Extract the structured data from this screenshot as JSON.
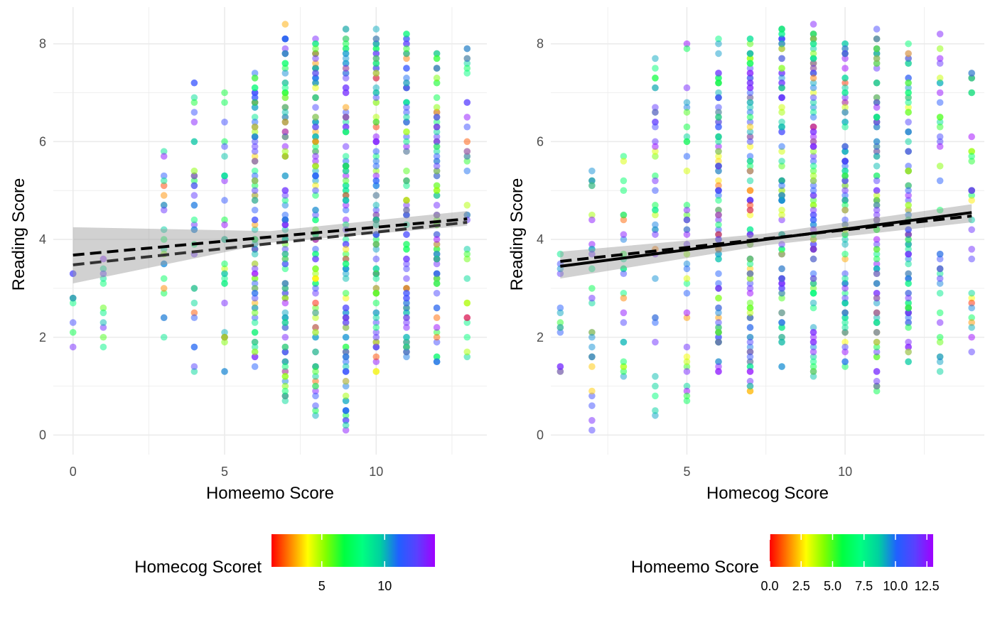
{
  "palette": {
    "grid": "#ebebeb",
    "tick_text": "#4d4d4d",
    "ribbon": "#999999",
    "line": "#000000",
    "gradient": [
      "#ff0000",
      "#ff8000",
      "#ffff00",
      "#80ff00",
      "#00ff40",
      "#00ff80",
      "#00d0a0",
      "#2060ff",
      "#5a40ff",
      "#a000ff"
    ]
  },
  "chart_data": [
    {
      "type": "scatter",
      "xlabel": "Homeemo Score",
      "ylabel": "Reading Score",
      "xlim": [
        -0.65,
        13.65
      ],
      "ylim": [
        -0.4,
        8.75
      ],
      "x_ticks": [
        0,
        5,
        10
      ],
      "x_tick_labels": [
        "0",
        "5",
        "10"
      ],
      "y_ticks": [
        0,
        2,
        4,
        6,
        8
      ],
      "y_tick_labels": [
        "0",
        "2",
        "4",
        "6",
        "8"
      ],
      "color_variable": "Homecog Score",
      "color_range": [
        1,
        14
      ],
      "grid": true,
      "legend": {
        "title": "Homecog Scoret",
        "position": "bottom",
        "range": [
          1,
          14
        ],
        "ticks": [
          5,
          10
        ],
        "tick_labels": [
          "5",
          "10"
        ]
      },
      "points_note": "approximately 900 jittered-free points at integer x values",
      "x_values": [
        0,
        1,
        3,
        4,
        5,
        6,
        7,
        8,
        9,
        10,
        11,
        12,
        13
      ],
      "y_range_by_x": {
        "0": [
          1.8,
          3.3
        ],
        "1": [
          1.8,
          3.6
        ],
        "3": [
          2.0,
          5.8
        ],
        "4": [
          1.3,
          7.2
        ],
        "5": [
          1.3,
          7.0
        ],
        "6": [
          1.4,
          7.4
        ],
        "7": [
          0.7,
          8.4
        ],
        "8": [
          0.4,
          8.1
        ],
        "9": [
          0.1,
          8.3
        ],
        "10": [
          1.3,
          8.3
        ],
        "11": [
          1.6,
          8.2
        ],
        "12": [
          1.5,
          7.8
        ],
        "13": [
          1.6,
          7.9
        ]
      },
      "fits": [
        {
          "x": [
            0,
            13
          ],
          "y": [
            3.68,
            4.42
          ],
          "style": "dashed",
          "ribbon": [
            [
              3.1,
              4.25
            ],
            [
              4.28,
              4.58
            ]
          ]
        },
        {
          "x": [
            0,
            13
          ],
          "y": [
            3.48,
            4.35
          ],
          "style": "dashed-secondary"
        }
      ]
    },
    {
      "type": "scatter",
      "xlabel": "Homecog Score",
      "ylabel": "Reading Score",
      "xlim": [
        0.7,
        14.4
      ],
      "ylim": [
        -0.4,
        8.75
      ],
      "x_ticks": [
        5,
        10
      ],
      "x_tick_labels": [
        "5",
        "10"
      ],
      "y_ticks": [
        0,
        2,
        4,
        6,
        8
      ],
      "y_tick_labels": [
        "0",
        "2",
        "4",
        "6",
        "8"
      ],
      "color_variable": "Homeemo Score",
      "color_range": [
        0,
        13
      ],
      "grid": true,
      "legend": {
        "title": "Homeemo Score",
        "position": "bottom",
        "range": [
          0,
          13
        ],
        "ticks": [
          0,
          2.5,
          5,
          7.5,
          10,
          12.5
        ],
        "tick_labels": [
          "0.0",
          "2.5",
          "5.0",
          "7.5",
          "10.0",
          "12.5"
        ]
      },
      "x_values": [
        1,
        2,
        3,
        4,
        5,
        6,
        7,
        8,
        9,
        10,
        11,
        12,
        13,
        14
      ],
      "y_range_by_x": {
        "1": [
          1.3,
          3.7
        ],
        "2": [
          0.1,
          5.4
        ],
        "3": [
          1.2,
          5.7
        ],
        "4": [
          0.4,
          7.7
        ],
        "5": [
          0.7,
          8.0
        ],
        "6": [
          1.3,
          8.1
        ],
        "7": [
          0.9,
          8.1
        ],
        "8": [
          1.4,
          8.3
        ],
        "9": [
          1.2,
          8.4
        ],
        "10": [
          1.4,
          8.0
        ],
        "11": [
          0.9,
          8.3
        ],
        "12": [
          1.5,
          8.0
        ],
        "13": [
          1.3,
          8.2
        ],
        "14": [
          1.7,
          7.4
        ]
      },
      "fits": [
        {
          "x": [
            1,
            14
          ],
          "y": [
            3.45,
            4.55
          ],
          "style": "solid",
          "ribbon": [
            [
              3.2,
              3.75
            ],
            [
              4.35,
              4.72
            ]
          ]
        },
        {
          "x": [
            1,
            14
          ],
          "y": [
            3.55,
            4.48
          ],
          "style": "dashed"
        }
      ]
    }
  ]
}
